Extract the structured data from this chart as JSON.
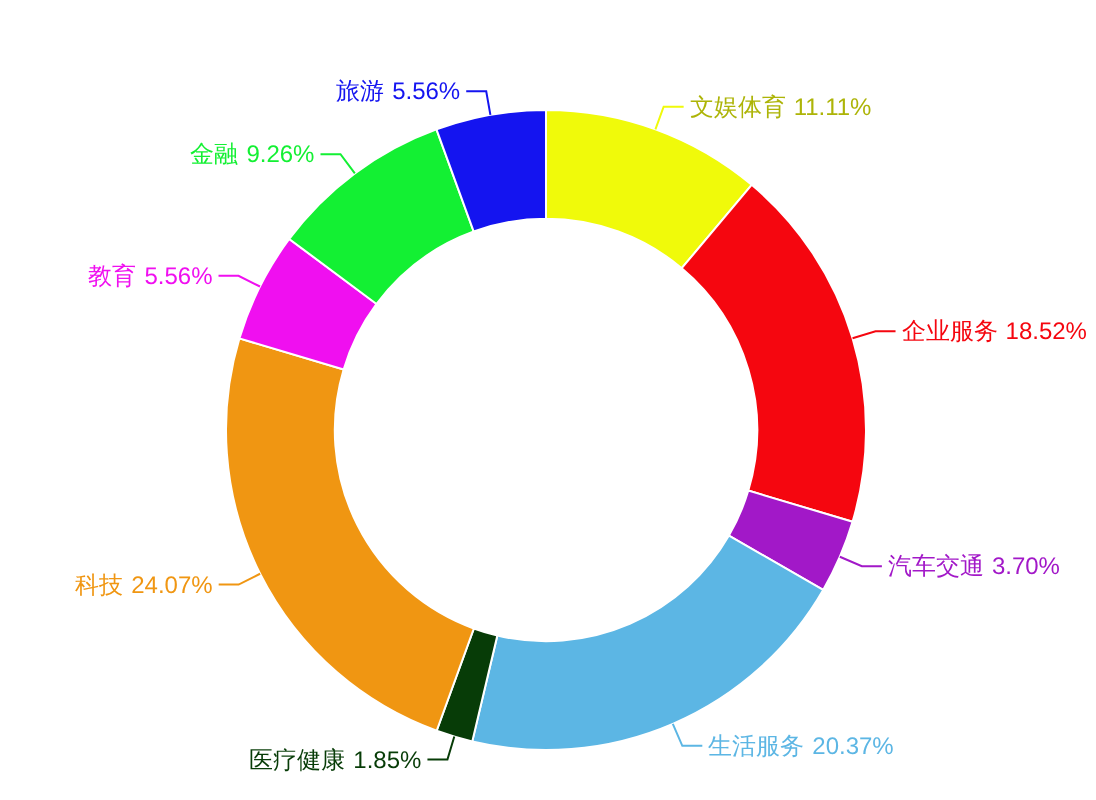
{
  "chart_data": {
    "type": "donut",
    "categories": [
      "文娱体育",
      "企业服务",
      "汽车交通",
      "生活服务",
      "医疗健康",
      "科技",
      "教育",
      "金融",
      "旅游"
    ],
    "values": [
      11.11,
      18.52,
      3.7,
      20.37,
      1.85,
      24.07,
      5.56,
      9.26,
      5.56
    ],
    "colors": [
      "#f0fa0a",
      "#f5060f",
      "#a218c8",
      "#5cb6e4",
      "#073c07",
      "#f09612",
      "#f00ff0",
      "#13f033",
      "#1414f0"
    ],
    "value_labels": [
      "11.11%",
      "18.52%",
      "3.70%",
      "20.37%",
      "1.85%",
      "24.07%",
      "5.56%",
      "9.26%",
      "5.56%"
    ]
  }
}
